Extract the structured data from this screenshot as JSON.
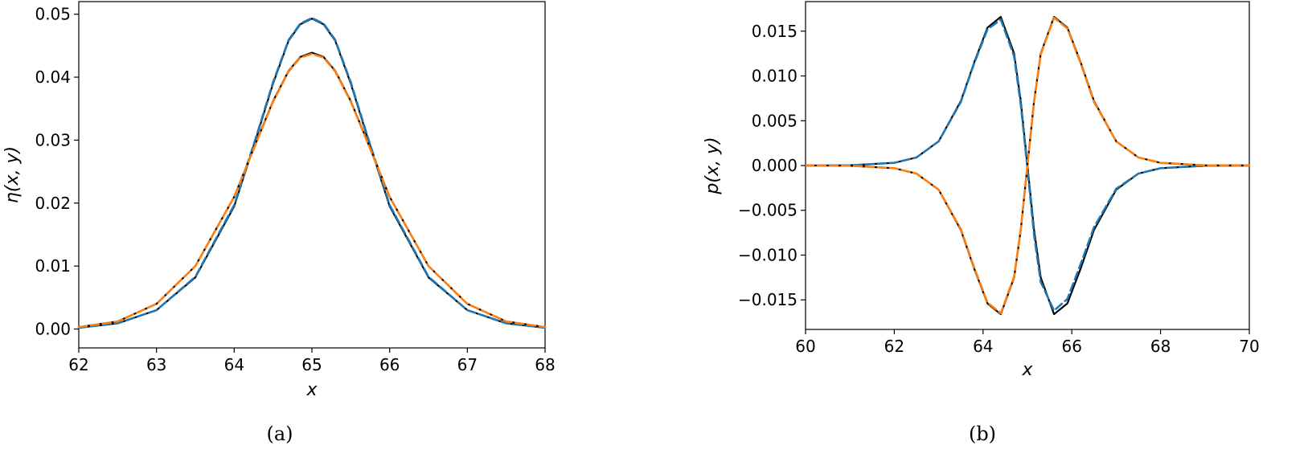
{
  "chart_data": [
    {
      "panel_label": "(a)",
      "type": "line",
      "xlabel": "x",
      "ylabel": "η(x, y)",
      "xlim": [
        62,
        68
      ],
      "ylim": [
        -0.003,
        0.052
      ],
      "xticks": [
        62,
        63,
        64,
        65,
        66,
        67,
        68
      ],
      "xtick_labels": [
        "62",
        "63",
        "64",
        "65",
        "66",
        "67",
        "68"
      ],
      "yticks": [
        0.0,
        0.01,
        0.02,
        0.03,
        0.04,
        0.05
      ],
      "ytick_labels": [
        "0.00",
        "0.01",
        "0.02",
        "0.03",
        "0.04",
        "0.05"
      ],
      "grid": false,
      "legend": "none",
      "x": [
        62.0,
        62.5,
        63.0,
        63.5,
        64.0,
        64.3,
        64.5,
        64.7,
        64.85,
        65.0,
        65.15,
        65.3,
        65.5,
        65.7,
        66.0,
        66.5,
        67.0,
        67.5,
        68.0
      ],
      "series": [
        {
          "color": "#000000",
          "style": "solid",
          "values": [
            0.0002,
            0.0009,
            0.003,
            0.0082,
            0.0195,
            0.031,
            0.039,
            0.0458,
            0.0484,
            0.0493,
            0.0484,
            0.0458,
            0.039,
            0.031,
            0.0195,
            0.0082,
            0.003,
            0.0009,
            0.0002
          ]
        },
        {
          "color": "#1f77b4",
          "style": "dashed",
          "values": [
            0.0002,
            0.0009,
            0.003,
            0.0083,
            0.0197,
            0.0312,
            0.0392,
            0.0459,
            0.0485,
            0.0494,
            0.0485,
            0.0459,
            0.0392,
            0.0312,
            0.0197,
            0.0083,
            0.003,
            0.0009,
            0.0002
          ]
        },
        {
          "color": "#000000",
          "style": "solid",
          "values": [
            0.0003,
            0.0012,
            0.004,
            0.01,
            0.021,
            0.0302,
            0.0362,
            0.041,
            0.0432,
            0.0439,
            0.0432,
            0.041,
            0.0362,
            0.0302,
            0.021,
            0.01,
            0.004,
            0.0012,
            0.0003
          ]
        },
        {
          "color": "#ff7f0e",
          "style": "dashed",
          "values": [
            0.0003,
            0.0012,
            0.004,
            0.01,
            0.021,
            0.0301,
            0.0361,
            0.0409,
            0.0431,
            0.0437,
            0.0431,
            0.0409,
            0.0361,
            0.0301,
            0.021,
            0.01,
            0.004,
            0.0012,
            0.0003
          ]
        }
      ]
    },
    {
      "panel_label": "(b)",
      "type": "line",
      "xlabel": "x",
      "ylabel": "p(x, y)",
      "xlim": [
        60,
        70
      ],
      "ylim": [
        -0.0183,
        0.0183
      ],
      "xticks": [
        60,
        62,
        64,
        66,
        68,
        70
      ],
      "xtick_labels": [
        "60",
        "62",
        "64",
        "66",
        "68",
        "70"
      ],
      "yticks": [
        -0.015,
        -0.01,
        -0.005,
        0.0,
        0.005,
        0.01,
        0.015
      ],
      "ytick_labels": [
        "−0.015",
        "−0.010",
        "−0.005",
        "0.000",
        "0.005",
        "0.010",
        "0.015"
      ],
      "grid": false,
      "legend": "none",
      "x": [
        60.0,
        61.0,
        62.0,
        62.5,
        63.0,
        63.5,
        63.8,
        64.1,
        64.4,
        64.7,
        64.85,
        65.0,
        65.15,
        65.3,
        65.6,
        65.9,
        66.2,
        66.5,
        67.0,
        67.5,
        68.0,
        69.0,
        70.0
      ],
      "series": [
        {
          "color": "#000000",
          "style": "solid",
          "values": [
            0.0,
            2e-05,
            0.0003,
            0.0009,
            0.0027,
            0.0072,
            0.0115,
            0.0154,
            0.0166,
            0.0125,
            0.0072,
            0.0,
            -0.0072,
            -0.0125,
            -0.0166,
            -0.0154,
            -0.0115,
            -0.0072,
            -0.0027,
            -0.0009,
            -0.0003,
            -2e-05,
            0.0
          ]
        },
        {
          "color": "#1f77b4",
          "style": "dashed",
          "values": [
            0.0,
            2e-05,
            0.0003,
            0.0009,
            0.0027,
            0.0071,
            0.0114,
            0.0152,
            0.0163,
            0.0122,
            0.0068,
            -0.0003,
            -0.0078,
            -0.013,
            -0.0162,
            -0.0149,
            -0.011,
            -0.0069,
            -0.0026,
            -0.0009,
            -0.0003,
            -2e-05,
            0.0
          ]
        },
        {
          "color": "#000000",
          "style": "solid",
          "values": [
            0.0,
            -2e-05,
            -0.0003,
            -0.0009,
            -0.0027,
            -0.0072,
            -0.0115,
            -0.0154,
            -0.0166,
            -0.0125,
            -0.0072,
            0.0,
            0.0072,
            0.0125,
            0.0166,
            0.0154,
            0.0115,
            0.0072,
            0.0027,
            0.0009,
            0.0003,
            2e-05,
            0.0
          ]
        },
        {
          "color": "#ff7f0e",
          "style": "dashed",
          "values": [
            0.0,
            -2e-05,
            -0.0003,
            -0.0009,
            -0.0027,
            -0.0071,
            -0.0114,
            -0.0153,
            -0.0165,
            -0.0124,
            -0.0071,
            0.0,
            0.0071,
            0.0124,
            0.0165,
            0.0153,
            0.0114,
            0.0071,
            0.0027,
            0.0009,
            0.0003,
            2e-05,
            0.0
          ]
        }
      ]
    }
  ]
}
